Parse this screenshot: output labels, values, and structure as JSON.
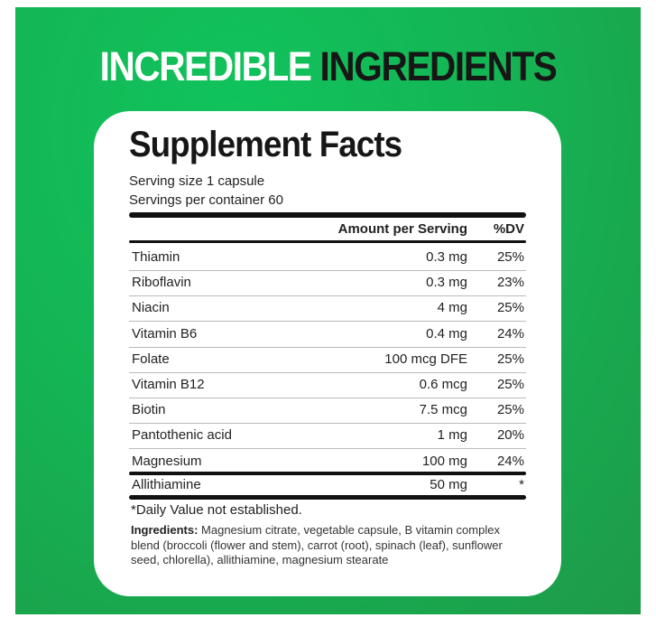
{
  "headline": {
    "part1": "INCREDIBLE",
    "part2": "INGREDIENTS"
  },
  "facts": {
    "title": "Supplement Facts",
    "serving_size": "Serving size 1 capsule",
    "servings_per_container": "Servings per container 60",
    "header": {
      "amount": "Amount per Serving",
      "dv": "%DV"
    },
    "rows": [
      {
        "name": "Thiamin",
        "amount": "0.3 mg",
        "dv": "25%"
      },
      {
        "name": "Riboflavin",
        "amount": "0.3 mg",
        "dv": "23%"
      },
      {
        "name": "Niacin",
        "amount": "4 mg",
        "dv": "25%"
      },
      {
        "name": "Vitamin B6",
        "amount": "0.4 mg",
        "dv": "24%"
      },
      {
        "name": "Folate",
        "amount": "100 mcg DFE",
        "dv": "25%"
      },
      {
        "name": "Vitamin B12",
        "amount": "0.6 mcg",
        "dv": "25%"
      },
      {
        "name": "Biotin",
        "amount": "7.5 mcg",
        "dv": "25%"
      },
      {
        "name": "Pantothenic acid",
        "amount": "1 mg",
        "dv": "20%"
      },
      {
        "name": "Magnesium",
        "amount": "100 mg",
        "dv": "24%"
      }
    ],
    "other": {
      "name": "Allithiamine",
      "amount": "50 mg",
      "dv": "*"
    },
    "footnote": "*Daily Value not established.",
    "ingredients_label": "Ingredients:",
    "ingredients": "Magnesium citrate, vegetable capsule, B vitamin complex blend (broccoli (flower and stem), carrot (root), spinach (leaf), sunflower seed, chlorella), allithiamine, magnesium stearate"
  },
  "colors": {
    "background_green": "#14b554",
    "card": "#ffffff",
    "text_dark": "#161616"
  }
}
